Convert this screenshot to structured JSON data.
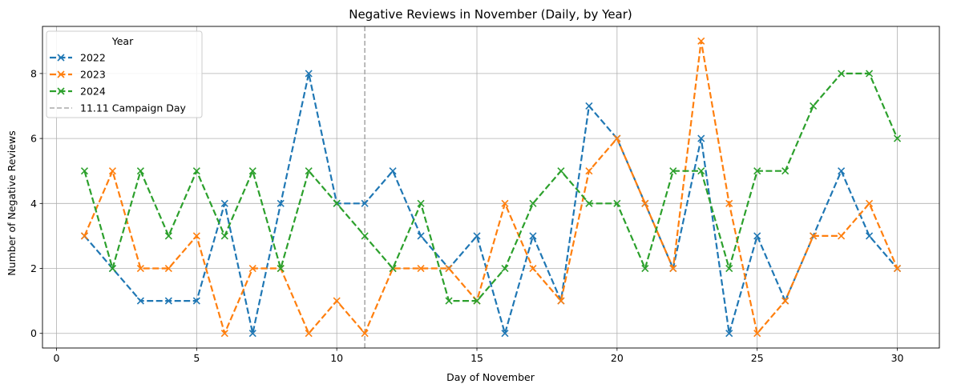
{
  "chart_data": {
    "type": "line",
    "title": "Negative Reviews in November (Daily, by Year)",
    "xlabel": "Day of November",
    "ylabel": "Number of Negative Reviews",
    "xlim": [
      -0.5,
      31.5
    ],
    "ylim": [
      -0.45,
      9.45
    ],
    "xticks": [
      0,
      5,
      10,
      15,
      20,
      25,
      30
    ],
    "yticks": [
      0,
      2,
      4,
      6,
      8
    ],
    "grid": true,
    "legend_title": "Year",
    "legend_position": "top-left",
    "x": [
      1,
      2,
      3,
      4,
      5,
      6,
      7,
      8,
      9,
      10,
      11,
      12,
      13,
      14,
      15,
      16,
      17,
      18,
      19,
      20,
      21,
      22,
      23,
      24,
      25,
      26,
      27,
      28,
      29,
      30
    ],
    "series": [
      {
        "name": "2022",
        "color": "#1f77b4",
        "values": [
          3,
          2,
          1,
          1,
          1,
          4,
          0,
          4,
          8,
          4,
          4,
          5,
          3,
          2,
          3,
          0,
          3,
          1,
          7,
          6,
          4,
          2,
          6,
          0,
          3,
          1,
          3,
          5,
          3,
          2
        ]
      },
      {
        "name": "2023",
        "color": "#ff7f0e",
        "values": [
          3,
          5,
          2,
          2,
          3,
          0,
          2,
          2,
          0,
          1,
          0,
          2,
          2,
          2,
          1,
          4,
          2,
          1,
          5,
          6,
          4,
          2,
          9,
          4,
          0,
          1,
          3,
          3,
          4,
          2
        ]
      },
      {
        "name": "2024",
        "color": "#2ca02c",
        "values": [
          5,
          2,
          5,
          3,
          5,
          3,
          5,
          2,
          5,
          4,
          3,
          2,
          4,
          1,
          1,
          2,
          4,
          5,
          4,
          4,
          2,
          5,
          5,
          2,
          5,
          5,
          7,
          8,
          8,
          6
        ]
      }
    ],
    "reference_line": {
      "name": "11.11 Campaign Day",
      "x": 11,
      "color": "#aaaaaa"
    }
  }
}
